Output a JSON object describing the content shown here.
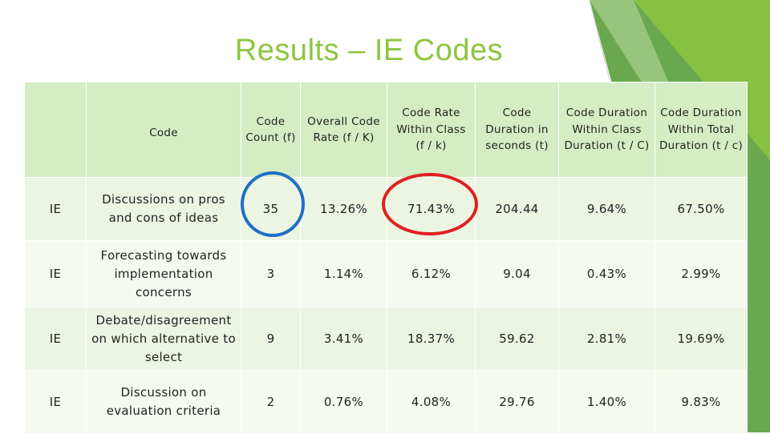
{
  "slide": {
    "title": "Results – IE Codes",
    "accent_color": "#8cc63f"
  },
  "table": {
    "headers": {
      "row_label": "",
      "code": "Code",
      "count": "Code Count (f)",
      "overall_rate": "Overall Code Rate (f / K)",
      "within_class_rate": "Code Rate Within Class (f / k)",
      "duration": "Code Duration in seconds (t)",
      "duration_within_class": "Code Duration Within Class Duration (t / C)",
      "duration_within_total": "Code Duration Within Total Duration (t / c)"
    },
    "rows": [
      {
        "label": "IE",
        "code": "Discussions on pros and cons of ideas",
        "count": "35",
        "overall_rate": "13.26%",
        "within_class_rate": "71.43%",
        "duration": "204.44",
        "duration_within_class": "9.64%",
        "duration_within_total": "67.50%"
      },
      {
        "label": "IE",
        "code": "Forecasting towards implementation concerns",
        "count": "3",
        "overall_rate": "1.14%",
        "within_class_rate": "6.12%",
        "duration": "9.04",
        "duration_within_class": "0.43%",
        "duration_within_total": "2.99%"
      },
      {
        "label": "IE",
        "code": "Debate/disagreement on which alternative to select",
        "count": "9",
        "overall_rate": "3.41%",
        "within_class_rate": "18.37%",
        "duration": "59.62",
        "duration_within_class": "2.81%",
        "duration_within_total": "19.69%"
      },
      {
        "label": "IE",
        "code": "Discussion on evaluation criteria",
        "count": "2",
        "overall_rate": "0.76%",
        "within_class_rate": "4.08%",
        "duration": "29.76",
        "duration_within_class": "1.40%",
        "duration_within_total": "9.83%"
      }
    ],
    "header_fill": "#d4edc4",
    "row_fill": "#ebf5e2"
  },
  "highlights": [
    {
      "target": "count of first row",
      "color": "#1f6fc8"
    },
    {
      "target": "within-class rate of first row",
      "color": "#e02020"
    }
  ]
}
